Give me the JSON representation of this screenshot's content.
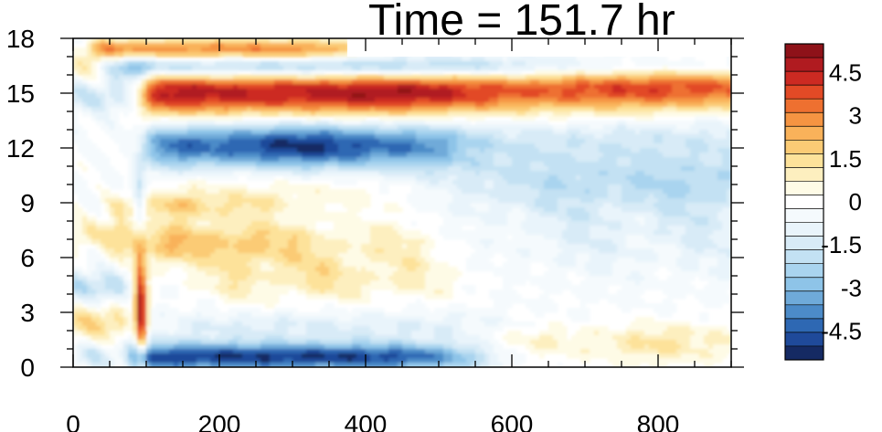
{
  "chart_data": {
    "type": "heatmap",
    "title": "Time = 151.7 hr",
    "xlabel": "",
    "ylabel": "",
    "xlim": [
      0,
      900
    ],
    "ylim": [
      0,
      18
    ],
    "x_ticks": [
      0,
      200,
      400,
      600,
      800
    ],
    "x_tick_labels": [
      "0",
      "200",
      "400",
      "600",
      "800"
    ],
    "y_ticks": [
      0,
      3,
      6,
      9,
      12,
      15,
      18
    ],
    "y_tick_labels": [
      "0",
      "3",
      "6",
      "9",
      "12",
      "15",
      "18"
    ],
    "grid": false,
    "colorbar": {
      "placement": "right",
      "levels": [
        -5.5,
        -5,
        -4.5,
        -4,
        -3.5,
        -3,
        -2.5,
        -2,
        -1.5,
        -1,
        -0.5,
        0,
        0.5,
        1,
        1.5,
        2,
        2.5,
        3,
        3.5,
        4,
        4.5,
        5,
        5.5
      ],
      "colors": [
        "#152a63",
        "#1f4a9a",
        "#2e68b3",
        "#4c8bc8",
        "#6faad9",
        "#8ec4e8",
        "#a9d4ef",
        "#c3e1f3",
        "#d8ebf7",
        "#e9f4fb",
        "#f5fafd",
        "#ffffff",
        "#fefbe6",
        "#fdefbf",
        "#fde29a",
        "#fbcb75",
        "#f9b25a",
        "#f59442",
        "#ee7030",
        "#e24a26",
        "#cc2a22",
        "#b01b20",
        "#8e1219"
      ],
      "tick_values": [
        4.5,
        3,
        1.5,
        0,
        -1.5,
        -3,
        -4.5
      ],
      "tick_labels": [
        "4.5",
        "3",
        "1.5",
        "0",
        "-1.5",
        "-3",
        "-4.5"
      ]
    }
  }
}
